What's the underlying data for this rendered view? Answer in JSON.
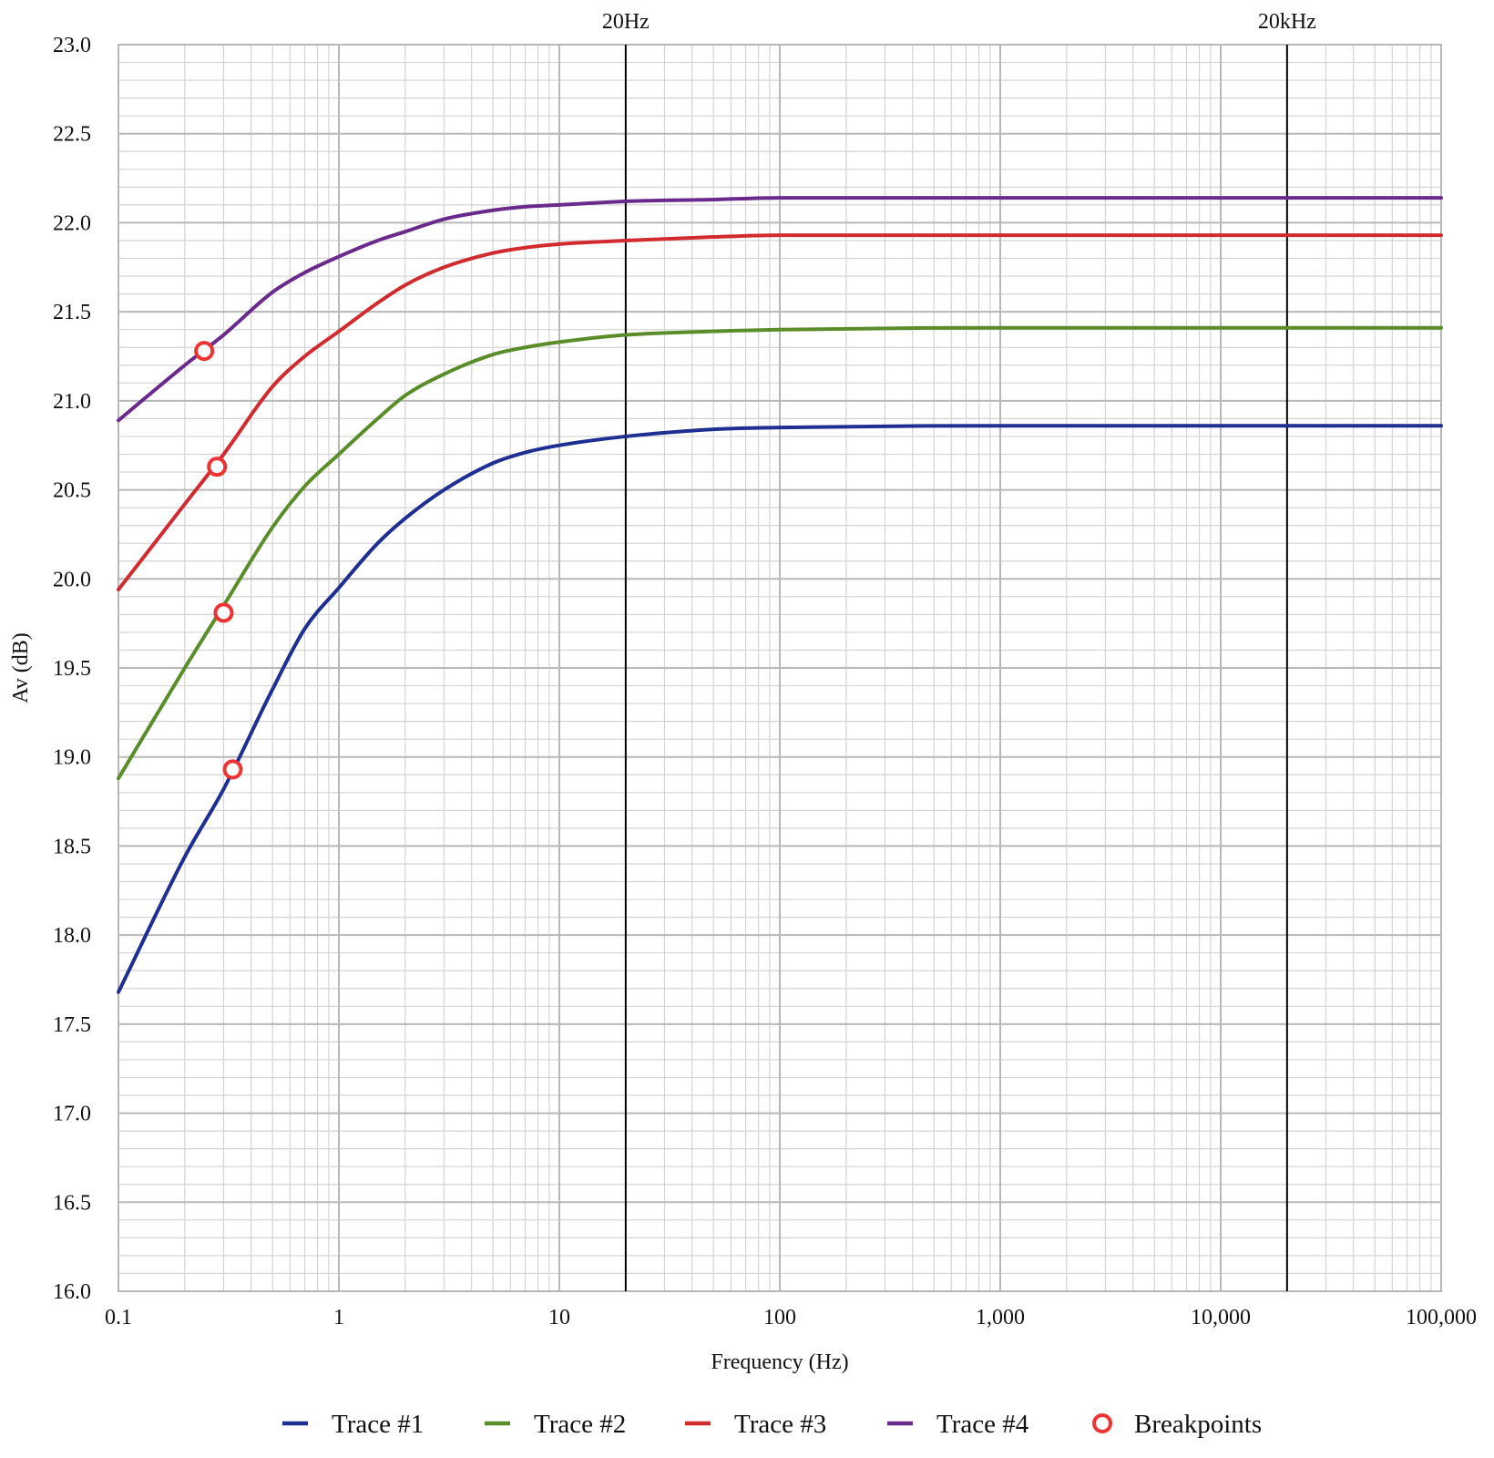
{
  "chart_data": {
    "type": "line",
    "title": "",
    "xlabel": "Frequency (Hz)",
    "ylabel": "Av (dB)",
    "x_scale": "log",
    "xlim": [
      0.1,
      100000
    ],
    "ylim": [
      16.0,
      23.0
    ],
    "x_ticks": [
      0.1,
      1,
      10,
      100,
      1000,
      10000,
      100000
    ],
    "x_tick_labels": [
      "0.1",
      "1",
      "10",
      "100",
      "1,000",
      "10,000",
      "100,000"
    ],
    "y_ticks": [
      16.0,
      16.5,
      17.0,
      17.5,
      18.0,
      18.5,
      19.0,
      19.5,
      20.0,
      20.5,
      21.0,
      21.5,
      22.0,
      22.5,
      23.0
    ],
    "y_tick_labels": [
      "16.0",
      "16.5",
      "17.0",
      "17.5",
      "18.0",
      "18.5",
      "19.0",
      "19.5",
      "20.0",
      "20.5",
      "21.0",
      "21.5",
      "22.0",
      "22.5",
      "23.0"
    ],
    "grid": true,
    "legend_position": "bottom",
    "vertical_markers": [
      {
        "x": 20,
        "label": "20Hz"
      },
      {
        "x": 20000,
        "label": "20kHz"
      }
    ],
    "series": [
      {
        "name": "Trace #1",
        "color": "#1f2f91",
        "x": [
          0.1,
          0.2,
          0.3,
          0.5,
          0.7,
          1,
          1.5,
          2,
          3,
          5,
          7,
          10,
          20,
          50,
          100,
          1000,
          10000,
          100000
        ],
        "y": [
          17.68,
          18.44,
          18.82,
          19.38,
          19.72,
          19.95,
          20.2,
          20.34,
          20.5,
          20.65,
          20.71,
          20.75,
          20.8,
          20.84,
          20.85,
          20.86,
          20.86,
          20.86
        ]
      },
      {
        "name": "Trace #2",
        "color": "#5b8c2a",
        "x": [
          0.1,
          0.2,
          0.3,
          0.5,
          0.7,
          1,
          1.5,
          2,
          3,
          5,
          7,
          10,
          20,
          50,
          100,
          1000,
          10000,
          100000
        ],
        "y": [
          18.88,
          19.5,
          19.85,
          20.29,
          20.52,
          20.7,
          20.9,
          21.03,
          21.15,
          21.26,
          21.3,
          21.33,
          21.37,
          21.39,
          21.4,
          21.41,
          21.41,
          21.41
        ]
      },
      {
        "name": "Trace #3",
        "color": "#d12a2f",
        "x": [
          0.1,
          0.2,
          0.3,
          0.5,
          0.7,
          1,
          1.5,
          2,
          3,
          5,
          7,
          10,
          20,
          50,
          100,
          1000,
          10000,
          100000
        ],
        "y": [
          19.94,
          20.42,
          20.7,
          21.08,
          21.25,
          21.39,
          21.55,
          21.65,
          21.75,
          21.83,
          21.86,
          21.88,
          21.9,
          21.92,
          21.93,
          21.93,
          21.93,
          21.93
        ]
      },
      {
        "name": "Trace #4",
        "color": "#6a2a8c",
        "x": [
          0.1,
          0.2,
          0.3,
          0.5,
          0.7,
          1,
          1.5,
          2,
          3,
          5,
          7,
          10,
          20,
          50,
          100,
          1000,
          10000,
          100000
        ],
        "y": [
          20.89,
          21.2,
          21.37,
          21.61,
          21.72,
          21.81,
          21.9,
          21.95,
          22.02,
          22.07,
          22.09,
          22.1,
          22.12,
          22.13,
          22.14,
          22.14,
          22.14,
          22.14
        ]
      }
    ],
    "breakpoints": {
      "name": "Breakpoints",
      "color": "#ee3333",
      "points": [
        {
          "x": 0.245,
          "y": 21.28
        },
        {
          "x": 0.28,
          "y": 20.63
        },
        {
          "x": 0.3,
          "y": 19.81
        },
        {
          "x": 0.33,
          "y": 18.93
        }
      ]
    }
  }
}
